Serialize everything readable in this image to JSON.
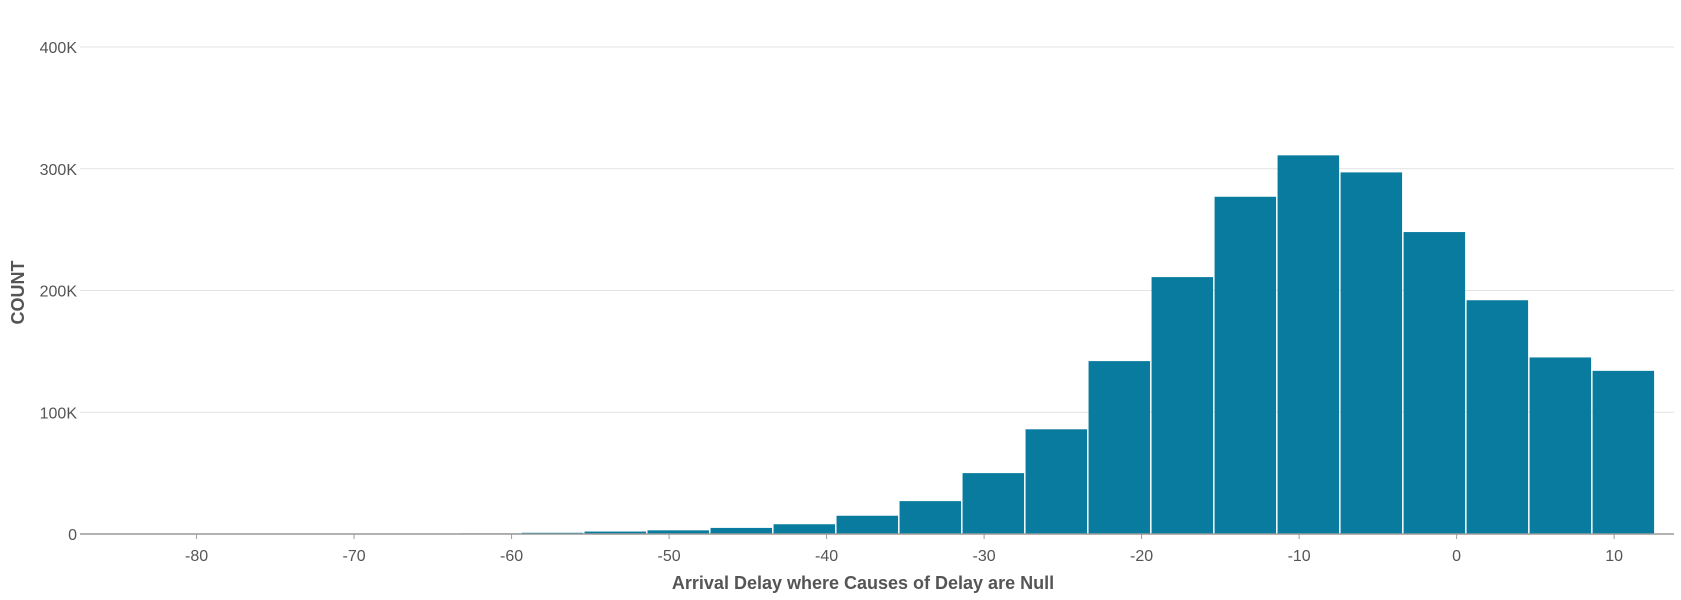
{
  "chart_data": {
    "type": "bar",
    "xlabel": "Arrival Delay where Causes of Delay are Null",
    "ylabel": "COUNT",
    "ylim": [
      0,
      400000
    ],
    "y_ticks": [
      {
        "value": 0,
        "label": "0"
      },
      {
        "value": 100000,
        "label": "100K"
      },
      {
        "value": 200000,
        "label": "200K"
      },
      {
        "value": 300000,
        "label": "300K"
      },
      {
        "value": 400000,
        "label": "400K"
      }
    ],
    "x_ticks": [
      {
        "value": -80,
        "label": "-80"
      },
      {
        "value": -70,
        "label": "-70"
      },
      {
        "value": -60,
        "label": "-60"
      },
      {
        "value": -50,
        "label": "-50"
      },
      {
        "value": -40,
        "label": "-40"
      },
      {
        "value": -30,
        "label": "-30"
      },
      {
        "value": -20,
        "label": "-20"
      },
      {
        "value": -10,
        "label": "-10"
      },
      {
        "value": 0,
        "label": "0"
      },
      {
        "value": 10,
        "label": "10"
      }
    ],
    "xlim": [
      -87.4,
      13.8
    ],
    "bar_color": "#087b9e",
    "grid": true,
    "bins": [
      {
        "x0": -87.4,
        "x1": -83.4,
        "value": 0
      },
      {
        "x0": -83.4,
        "x1": -79.4,
        "value": 0
      },
      {
        "x0": -79.4,
        "x1": -75.4,
        "value": 0
      },
      {
        "x0": -75.4,
        "x1": -71.4,
        "value": 0
      },
      {
        "x0": -71.4,
        "x1": -67.4,
        "value": 0
      },
      {
        "x0": -67.4,
        "x1": -63.4,
        "value": 0
      },
      {
        "x0": -63.4,
        "x1": -59.4,
        "value": 500
      },
      {
        "x0": -59.4,
        "x1": -55.4,
        "value": 1000
      },
      {
        "x0": -55.4,
        "x1": -51.4,
        "value": 2000
      },
      {
        "x0": -51.4,
        "x1": -47.4,
        "value": 3000
      },
      {
        "x0": -47.4,
        "x1": -43.4,
        "value": 5000
      },
      {
        "x0": -43.4,
        "x1": -39.4,
        "value": 8000
      },
      {
        "x0": -39.4,
        "x1": -35.4,
        "value": 15000
      },
      {
        "x0": -35.4,
        "x1": -31.4,
        "value": 27000
      },
      {
        "x0": -31.4,
        "x1": -27.4,
        "value": 50000
      },
      {
        "x0": -27.4,
        "x1": -23.4,
        "value": 86000
      },
      {
        "x0": -23.4,
        "x1": -19.4,
        "value": 142000
      },
      {
        "x0": -19.4,
        "x1": -15.4,
        "value": 211000
      },
      {
        "x0": -15.4,
        "x1": -11.4,
        "value": 277000
      },
      {
        "x0": -11.4,
        "x1": -7.4,
        "value": 311000
      },
      {
        "x0": -7.4,
        "x1": -3.4,
        "value": 297000
      },
      {
        "x0": -3.4,
        "x1": 0.6,
        "value": 248000
      },
      {
        "x0": 0.6,
        "x1": 4.6,
        "value": 192000
      },
      {
        "x0": 4.6,
        "x1": 8.6,
        "value": 145000
      },
      {
        "x0": 8.6,
        "x1": 12.6,
        "value": 134000
      }
    ]
  }
}
